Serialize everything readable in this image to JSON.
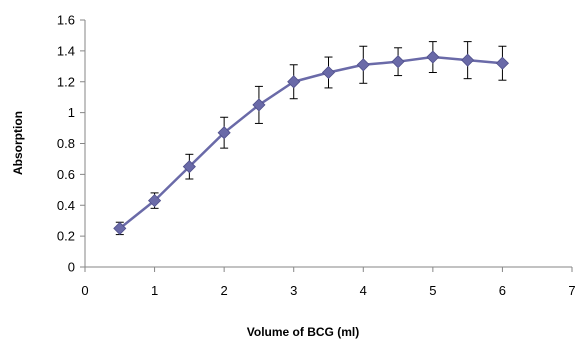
{
  "chart_data": {
    "type": "line",
    "title": "",
    "xlabel": "Volume of BCG (ml)",
    "ylabel": "Absorption",
    "xlim": [
      0,
      7
    ],
    "ylim": [
      0,
      1.6
    ],
    "x_ticks": [
      "0",
      "1",
      "2",
      "3",
      "4",
      "5",
      "6",
      "7"
    ],
    "y_ticks": [
      "0",
      "0.2",
      "0.4",
      "0.6",
      "0.8",
      "1",
      "1.2",
      "1.4",
      "1.6"
    ],
    "grid": false,
    "legend": "none",
    "series": [
      {
        "color": "#6a6aa8",
        "marker": "diamond",
        "x": [
          0.5,
          1.0,
          1.5,
          2.0,
          2.5,
          3.0,
          3.5,
          4.0,
          4.5,
          5.0,
          5.5,
          6.0
        ],
        "y": [
          0.25,
          0.43,
          0.65,
          0.87,
          1.05,
          1.2,
          1.26,
          1.31,
          1.33,
          1.36,
          1.34,
          1.32
        ],
        "error": [
          0.04,
          0.05,
          0.08,
          0.1,
          0.12,
          0.11,
          0.1,
          0.12,
          0.09,
          0.1,
          0.12,
          0.11
        ]
      }
    ]
  }
}
